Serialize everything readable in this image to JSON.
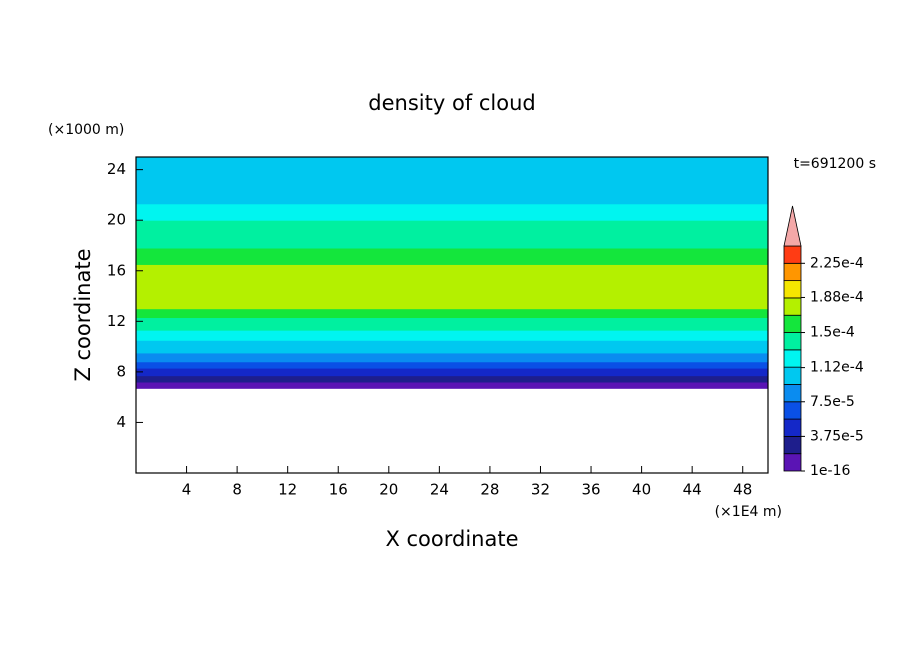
{
  "chart_data": {
    "type": "contour",
    "title": "density of cloud",
    "x_label": "X coordinate",
    "y_label": "Z coordinate",
    "x_unit": "(×1E4 m)",
    "y_unit": "(×1000 m)",
    "time_label": "t=691200 s",
    "xlim": [
      0,
      50
    ],
    "xticks": [
      4,
      8,
      12,
      16,
      20,
      24,
      28,
      32,
      36,
      40,
      44,
      48
    ],
    "ylim": [
      0,
      25
    ],
    "yticks": [
      4,
      8,
      12,
      16,
      20,
      24
    ],
    "y": [
      6.7,
      7.2,
      7.7,
      8.3,
      8.8,
      9.5,
      10.5,
      11.3,
      12.3,
      13,
      16.5,
      17.8,
      18.8,
      20,
      21.3,
      24,
      25
    ],
    "values": [
      1e-05,
      2.5e-05,
      4.5e-05,
      6.5e-05,
      8.5e-05,
      0.000105,
      0.00012,
      0.00014,
      0.000155,
      0.00017,
      0.000155,
      0.00014,
      0.000135,
      0.00012,
      0.000105,
      0.000102
    ],
    "levels": [
      1e-16,
      1.875e-05,
      3.75e-05,
      5.625e-05,
      7.5e-05,
      9.375e-05,
      0.0001125,
      0.00013125,
      0.00015,
      0.00016875,
      0.0001875,
      0.00020625,
      0.000225,
      0.00024375
    ],
    "colors": [
      "#5a14b4",
      "#1e1e8c",
      "#1428c8",
      "#0a50e6",
      "#0a8cf0",
      "#00c8f0",
      "#00f5f0",
      "#00f0a0",
      "#14e63c",
      "#b4f000",
      "#f5e600",
      "#ff9600",
      "#ff3c14"
    ],
    "extend_color": "#f4a8a8",
    "colorbar_ticks": [
      1e-16,
      {
        "value": 3.75e-05,
        "label": "3.75e-5"
      },
      {
        "value": 7.5e-05,
        "label": "7.5e-5"
      },
      {
        "value": 0.000112,
        "label": "1.12e-4"
      },
      {
        "value": 0.00015,
        "label": "1.5e-4"
      },
      {
        "value": 0.000188,
        "label": "1.88e-4"
      },
      {
        "value": 0.000225,
        "label": "2.25e-4"
      }
    ]
  }
}
